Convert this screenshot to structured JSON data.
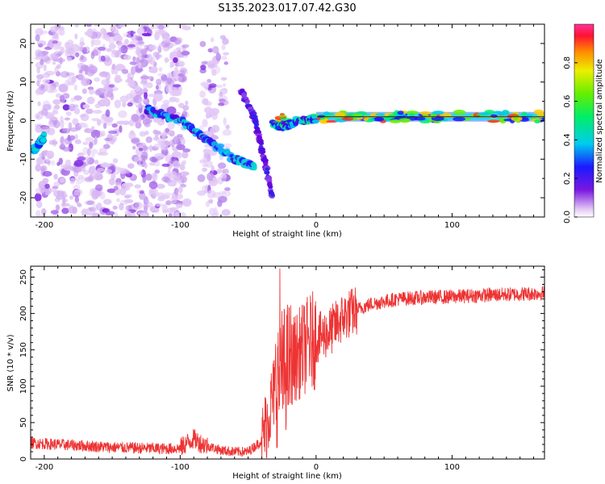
{
  "figure": {
    "title": "S135.2023.017.07.42.G30"
  },
  "chart_data": [
    {
      "type": "heatmap",
      "xlabel": "Height of straight line (km)",
      "ylabel": "Frequency (Hz)",
      "xlim": [
        -210,
        168
      ],
      "ylim": [
        -25,
        25
      ],
      "xticks": [
        -200,
        -100,
        0,
        100
      ],
      "yticks": [
        -20,
        -10,
        0,
        10,
        20
      ],
      "features": [
        {
          "name": "scattered-noise",
          "x_range": [
            -205,
            -95
          ],
          "y_range": [
            -25,
            25
          ]
        },
        {
          "name": "scattered-noise-2",
          "x_range": [
            -85,
            -65
          ],
          "y_range": [
            -25,
            22
          ]
        },
        {
          "name": "descending-trace-1",
          "x": [
            -125,
            -100,
            -80,
            -60,
            -45
          ],
          "y": [
            3,
            0,
            -5,
            -10,
            -12
          ]
        },
        {
          "name": "descending-trace-2",
          "x": [
            -55,
            -45,
            -38,
            -32
          ],
          "y": [
            8,
            0,
            -10,
            -20
          ]
        },
        {
          "name": "carrier-line",
          "x": [
            -30,
            0,
            50,
            100,
            168
          ],
          "y": [
            0,
            1,
            1,
            1,
            1
          ]
        },
        {
          "name": "left-edge-trace",
          "x": [
            -208,
            -204,
            -200
          ],
          "y": [
            -8,
            -6,
            -4
          ]
        }
      ],
      "colorbar": {
        "label": "Normalized spectral amplitude",
        "range": [
          0.0,
          1.0
        ],
        "ticks": [
          0.0,
          0.2,
          0.4,
          0.6,
          0.8
        ]
      }
    },
    {
      "type": "line",
      "xlabel": "Height of straight line (km)",
      "ylabel": "SNR (10 * v/v)",
      "xlim": [
        -210,
        168
      ],
      "ylim": [
        0,
        265
      ],
      "xticks": [
        -200,
        -100,
        0,
        100
      ],
      "yticks": [
        0,
        50,
        100,
        150,
        200,
        250
      ],
      "series": [
        {
          "name": "SNR",
          "color": "#ee3333",
          "x": [
            -210,
            -190,
            -170,
            -150,
            -130,
            -110,
            -100,
            -95,
            -90,
            -85,
            -80,
            -70,
            -60,
            -50,
            -40,
            -35,
            -30,
            -25,
            -20,
            -15,
            -10,
            -5,
            0,
            10,
            20,
            30,
            40,
            60,
            80,
            100,
            120,
            140,
            168
          ],
          "y": [
            22,
            20,
            18,
            16,
            15,
            14,
            15,
            22,
            28,
            22,
            18,
            12,
            10,
            10,
            25,
            60,
            100,
            120,
            130,
            140,
            150,
            160,
            165,
            175,
            195,
            205,
            213,
            220,
            222,
            223,
            225,
            226,
            228
          ]
        }
      ]
    }
  ]
}
